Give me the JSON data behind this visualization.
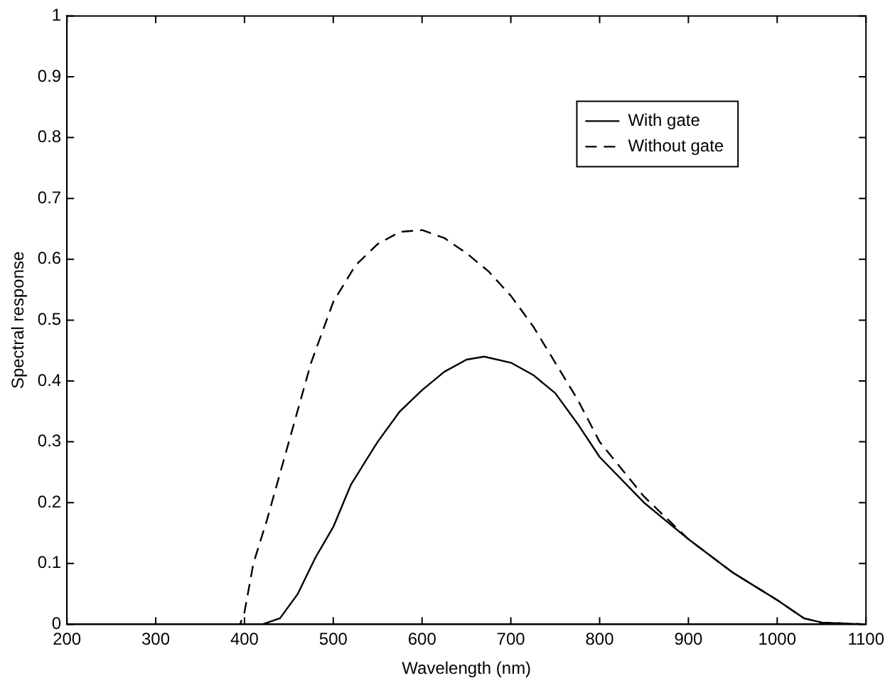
{
  "chart_data": {
    "type": "line",
    "xlabel": "Wavelength (nm)",
    "ylabel": "Spectral response",
    "xlim": [
      200,
      1100
    ],
    "ylim": [
      0,
      1
    ],
    "xticks": [
      200,
      300,
      400,
      500,
      600,
      700,
      800,
      900,
      1000,
      1100
    ],
    "yticks": [
      0,
      0.1,
      0.2,
      0.3,
      0.4,
      0.5,
      0.6,
      0.7,
      0.8,
      0.9,
      1
    ],
    "grid": false,
    "legend": "top right",
    "marker": "none",
    "series": [
      {
        "name": "With gate",
        "color": "#000000",
        "line_style": "solid",
        "x": [
          200,
          420,
          440,
          460,
          480,
          500,
          520,
          550,
          575,
          600,
          625,
          650,
          670,
          700,
          725,
          750,
          775,
          800,
          850,
          900,
          950,
          1000,
          1030,
          1050,
          1100
        ],
        "values": [
          0,
          0,
          0.01,
          0.05,
          0.11,
          0.16,
          0.23,
          0.3,
          0.35,
          0.385,
          0.415,
          0.435,
          0.44,
          0.43,
          0.41,
          0.38,
          0.33,
          0.275,
          0.2,
          0.14,
          0.085,
          0.04,
          0.01,
          0.003,
          0
        ]
      },
      {
        "name": "Without gate",
        "color": "#000000",
        "line_style": "dashed",
        "x": [
          200,
          395,
          400,
          410,
          425,
          450,
          475,
          500,
          525,
          550,
          575,
          600,
          625,
          650,
          675,
          700,
          725,
          750,
          775,
          800,
          850,
          900,
          950,
          1000,
          1030,
          1050,
          1100
        ],
        "values": [
          0,
          0,
          0.02,
          0.1,
          0.17,
          0.3,
          0.43,
          0.53,
          0.59,
          0.625,
          0.645,
          0.648,
          0.635,
          0.61,
          0.58,
          0.54,
          0.49,
          0.43,
          0.37,
          0.3,
          0.21,
          0.14,
          0.085,
          0.04,
          0.01,
          0.003,
          0
        ]
      }
    ]
  }
}
